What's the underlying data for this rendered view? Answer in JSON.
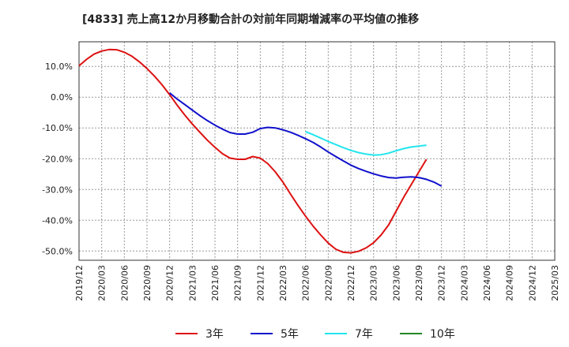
{
  "chart_data": {
    "type": "line",
    "title": "[4833]  売上高12か月移動合計の対前年同期増減率の平均値の推移",
    "xlabel": "",
    "ylabel": "",
    "ylim": [
      -53,
      18
    ],
    "y_ticks": [
      10,
      0,
      -10,
      -20,
      -30,
      -40,
      -50
    ],
    "y_tick_labels": [
      "10.0%",
      "0.0%",
      "-10.0%",
      "-20.0%",
      "-30.0%",
      "-40.0%",
      "-50.0%"
    ],
    "x_tick_labels": [
      "2019/12",
      "2020/03",
      "2020/06",
      "2020/09",
      "2020/12",
      "2021/03",
      "2021/06",
      "2021/09",
      "2021/12",
      "2022/03",
      "2022/06",
      "2022/09",
      "2022/12",
      "2023/03",
      "2023/06",
      "2023/09",
      "2023/12",
      "2024/03",
      "2024/06",
      "2024/09",
      "2024/12",
      "2025/03"
    ],
    "grid": true,
    "legend_position": "bottom",
    "series": [
      {
        "name": "3年",
        "color": "#dd1111",
        "start_index": 0,
        "values": [
          10.2,
          12.3,
          14.0,
          15.0,
          15.5,
          15.4,
          14.6,
          13.3,
          11.5,
          9.3,
          6.8,
          4.0,
          0.8,
          -2.6,
          -5.8,
          -8.7,
          -11.4,
          -14.0,
          -16.3,
          -18.4,
          -19.8,
          -20.2,
          -20.2,
          -19.3,
          -19.8,
          -21.6,
          -24.3,
          -27.6,
          -31.5,
          -35.2,
          -38.7,
          -41.9,
          -44.8,
          -47.4,
          -49.4,
          -50.4,
          -50.6,
          -50.1,
          -49.0,
          -47.3,
          -44.8,
          -41.5,
          -37.0,
          -32.5,
          -28.4,
          -24.3,
          -20.2
        ]
      },
      {
        "name": "5年",
        "color": "#1111cc",
        "start_index": 12,
        "values": [
          1.4,
          -0.6,
          -2.4,
          -4.2,
          -6.0,
          -7.6,
          -9.1,
          -10.4,
          -11.5,
          -12.0,
          -12.0,
          -11.4,
          -10.2,
          -9.8,
          -10.0,
          -10.6,
          -11.4,
          -12.4,
          -13.5,
          -14.7,
          -16.2,
          -17.8,
          -19.3,
          -20.7,
          -22.1,
          -23.2,
          -24.1,
          -24.9,
          -25.6,
          -26.1,
          -26.3,
          -26.0,
          -25.9,
          -26.1,
          -26.7,
          -27.6,
          -28.9
        ]
      },
      {
        "name": "7年",
        "color": "#22e5ee",
        "start_index": 30,
        "values": [
          -11.2,
          -12.2,
          -13.3,
          -14.4,
          -15.4,
          -16.4,
          -17.3,
          -18.0,
          -18.5,
          -18.8,
          -18.7,
          -18.2,
          -17.4,
          -16.7,
          -16.2,
          -15.9,
          -15.6
        ]
      },
      {
        "name": "10年",
        "color": "#228822",
        "start_index": 0,
        "values": []
      }
    ]
  }
}
